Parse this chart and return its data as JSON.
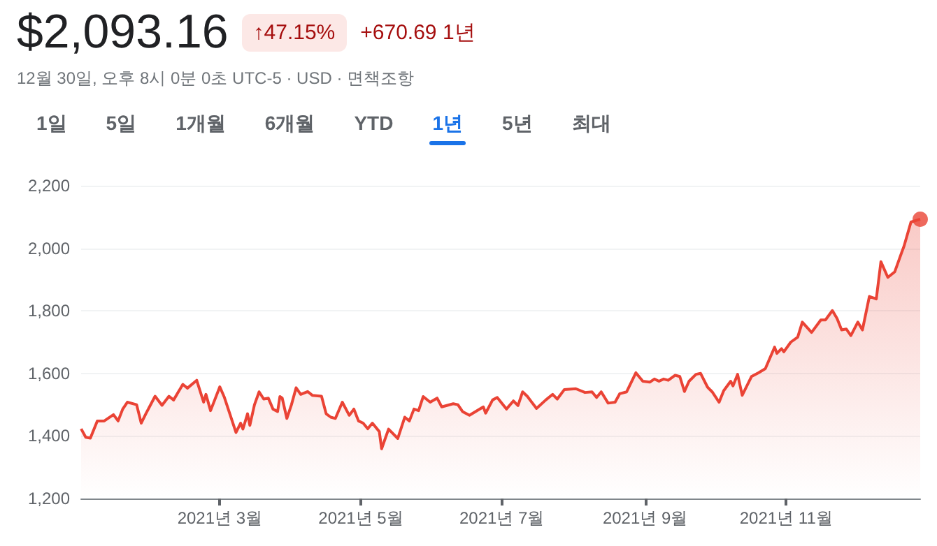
{
  "chart_data": {
    "type": "area",
    "title": "$2,093.16",
    "subtitle": "12월 30일, 오후 8시 0분 0초 UTC-5 · USD · 면책조항",
    "annotations": [
      "↑47.15%",
      "+670.69 1년",
      "1일",
      "5일",
      "1개월",
      "6개월",
      "YTD",
      "1년",
      "5년",
      "최대"
    ],
    "xlim": [
      "2020-12-31",
      "2021-12-29"
    ],
    "xticks": [
      {
        "value": "2021-03-01",
        "label": "2021년 3월"
      },
      {
        "value": "2021-05-01",
        "label": "2021년 5월"
      },
      {
        "value": "2021-07-01",
        "label": "2021년 7월"
      },
      {
        "value": "2021-09-01",
        "label": "2021년 9월"
      },
      {
        "value": "2021-11-01",
        "label": "2021년 11월"
      }
    ],
    "ylim": [
      1200,
      2200
    ],
    "yticks": [
      {
        "value": 1200,
        "label": "1,200"
      },
      {
        "value": 1400,
        "label": "1,400"
      },
      {
        "value": 1600,
        "label": "1,600"
      },
      {
        "value": 1800,
        "label": "1,800"
      },
      {
        "value": 2000,
        "label": "2,000"
      },
      {
        "value": 2200,
        "label": "2,200"
      }
    ],
    "grid": "y",
    "marker": "none",
    "line_style": "solid",
    "series": [
      {
        "color": "#ea4335",
        "x": [
          "2020-12-31",
          "2021-01-02",
          "2021-01-04",
          "2021-01-07",
          "2021-01-10",
          "2021-01-14",
          "2021-01-16",
          "2021-01-18",
          "2021-01-20",
          "2021-01-24",
          "2021-01-26",
          "2021-01-28",
          "2021-02-01",
          "2021-02-04",
          "2021-02-07",
          "2021-02-09",
          "2021-02-13",
          "2021-02-15",
          "2021-02-19",
          "2021-02-22",
          "2021-02-23",
          "2021-02-25",
          "2021-03-01",
          "2021-03-03",
          "2021-03-05",
          "2021-03-08",
          "2021-03-10",
          "2021-03-11",
          "2021-03-13",
          "2021-03-14",
          "2021-03-16",
          "2021-03-18",
          "2021-03-20",
          "2021-03-22",
          "2021-03-24",
          "2021-03-26",
          "2021-03-27",
          "2021-03-28",
          "2021-03-30",
          "2021-04-01",
          "2021-04-03",
          "2021-04-05",
          "2021-04-08",
          "2021-04-10",
          "2021-04-14",
          "2021-04-16",
          "2021-04-18",
          "2021-04-20",
          "2021-04-23",
          "2021-04-26",
          "2021-04-28",
          "2021-04-30",
          "2021-05-02",
          "2021-05-04",
          "2021-05-06",
          "2021-05-09",
          "2021-05-10",
          "2021-05-13",
          "2021-05-17",
          "2021-05-20",
          "2021-05-22",
          "2021-05-24",
          "2021-05-26",
          "2021-05-28",
          "2021-05-31",
          "2021-06-03",
          "2021-06-05",
          "2021-06-10",
          "2021-06-12",
          "2021-06-14",
          "2021-06-17",
          "2021-06-23",
          "2021-06-24",
          "2021-06-27",
          "2021-06-29",
          "2021-07-03",
          "2021-07-06",
          "2021-07-08",
          "2021-07-10",
          "2021-07-12",
          "2021-07-16",
          "2021-07-20",
          "2021-07-23",
          "2021-07-25",
          "2021-07-28",
          "2021-08-02",
          "2021-08-06",
          "2021-08-09",
          "2021-08-11",
          "2021-08-13",
          "2021-08-16",
          "2021-08-19",
          "2021-08-21",
          "2021-08-24",
          "2021-08-28",
          "2021-08-31",
          "2021-09-03",
          "2021-09-05",
          "2021-09-07",
          "2021-09-09",
          "2021-09-11",
          "2021-09-14",
          "2021-09-16",
          "2021-09-18",
          "2021-09-20",
          "2021-09-23",
          "2021-09-25",
          "2021-09-28",
          "2021-09-30",
          "2021-10-03",
          "2021-10-05",
          "2021-10-08",
          "2021-10-09",
          "2021-10-11",
          "2021-10-13",
          "2021-10-17",
          "2021-10-20",
          "2021-10-23",
          "2021-10-27",
          "2021-10-28",
          "2021-10-30",
          "2021-10-31",
          "2021-11-03",
          "2021-11-06",
          "2021-11-08",
          "2021-11-12",
          "2021-11-16",
          "2021-11-18",
          "2021-11-21",
          "2021-11-23",
          "2021-11-25",
          "2021-11-27",
          "2021-11-29",
          "2021-12-02",
          "2021-12-04",
          "2021-12-07",
          "2021-12-10",
          "2021-12-12",
          "2021-12-15",
          "2021-12-18",
          "2021-12-21",
          "2021-12-22",
          "2021-12-25",
          "2021-12-29"
        ],
        "values": [
          1423,
          1396,
          1393,
          1448,
          1448,
          1468,
          1448,
          1486,
          1508,
          1500,
          1441,
          1471,
          1527,
          1498,
          1527,
          1515,
          1565,
          1553,
          1578,
          1508,
          1533,
          1481,
          1557,
          1523,
          1478,
          1411,
          1441,
          1422,
          1471,
          1434,
          1500,
          1541,
          1518,
          1521,
          1486,
          1478,
          1526,
          1521,
          1456,
          1500,
          1554,
          1533,
          1542,
          1530,
          1527,
          1471,
          1460,
          1456,
          1508,
          1466,
          1486,
          1448,
          1441,
          1423,
          1441,
          1414,
          1359,
          1422,
          1392,
          1460,
          1448,
          1486,
          1481,
          1526,
          1508,
          1521,
          1493,
          1503,
          1500,
          1478,
          1466,
          1493,
          1473,
          1515,
          1523,
          1486,
          1512,
          1497,
          1541,
          1527,
          1488,
          1515,
          1533,
          1518,
          1548,
          1551,
          1539,
          1541,
          1523,
          1541,
          1505,
          1508,
          1535,
          1541,
          1602,
          1575,
          1572,
          1582,
          1575,
          1582,
          1578,
          1594,
          1590,
          1542,
          1575,
          1597,
          1600,
          1556,
          1541,
          1508,
          1545,
          1575,
          1560,
          1597,
          1530,
          1590,
          1602,
          1615,
          1684,
          1664,
          1679,
          1669,
          1700,
          1716,
          1764,
          1731,
          1771,
          1771,
          1801,
          1776,
          1739,
          1742,
          1721,
          1764,
          1739,
          1846,
          1838,
          1957,
          1907,
          1925,
          1987,
          2007,
          2084,
          2093
        ]
      },
      {
        "type": "scatter",
        "marker": "circle",
        "color": "#ea4335",
        "x": [
          "2021-12-29"
        ],
        "values": [
          2093
        ]
      }
    ]
  }
}
